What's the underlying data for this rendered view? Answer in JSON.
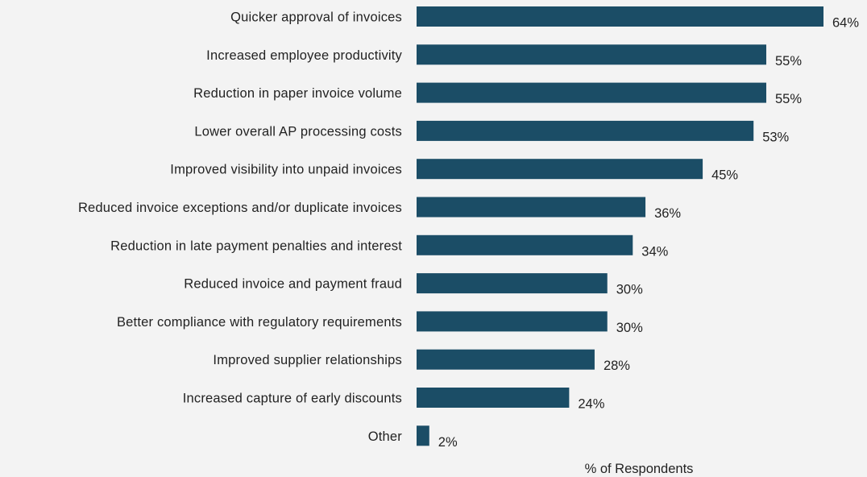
{
  "chart_data": {
    "type": "bar",
    "orientation": "horizontal",
    "categories": [
      "Quicker approval of invoices",
      "Increased employee productivity",
      "Reduction in paper invoice volume",
      "Lower overall AP processing costs",
      "Improved visibility into unpaid invoices",
      "Reduced invoice exceptions and/or duplicate invoices",
      "Reduction in late payment penalties and interest",
      "Reduced invoice and payment fraud",
      "Better compliance with regulatory requirements",
      "Improved supplier relationships",
      "Increased capture of early discounts",
      "Other"
    ],
    "values": [
      64,
      55,
      55,
      53,
      45,
      36,
      34,
      30,
      30,
      28,
      24,
      2
    ],
    "value_labels": [
      "64%",
      "55%",
      "55%",
      "53%",
      "45%",
      "36%",
      "34%",
      "30%",
      "30%",
      "28%",
      "24%",
      "2%"
    ],
    "xlabel": "% of Respondents",
    "ylabel": "",
    "xlim": [
      0,
      64
    ],
    "grid": false,
    "bar_color": "#1b4d66",
    "background_color": "#f3f3f3"
  }
}
